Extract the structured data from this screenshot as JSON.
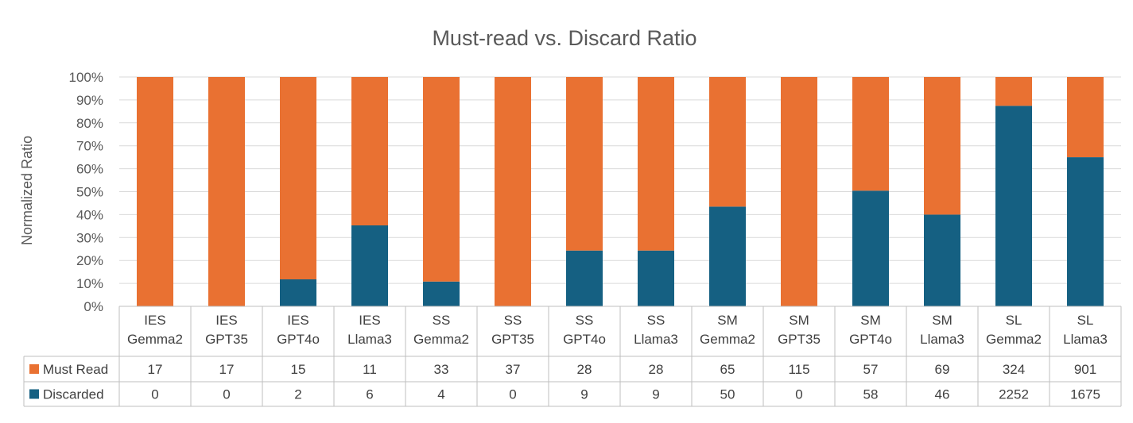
{
  "chart_data": {
    "type": "bar",
    "stacked": true,
    "normalized": true,
    "title": "Must-read vs. Discard Ratio",
    "ylabel": "Normalized Ratio",
    "ylim": [
      0,
      100
    ],
    "yticks": [
      "0%",
      "10%",
      "20%",
      "30%",
      "40%",
      "50%",
      "60%",
      "70%",
      "80%",
      "90%",
      "100%"
    ],
    "grid": true,
    "legend": "data-table",
    "categories": [
      [
        "IES",
        "Gemma2"
      ],
      [
        "IES",
        "GPT35"
      ],
      [
        "IES",
        "GPT4o"
      ],
      [
        "IES",
        "Llama3"
      ],
      [
        "SS",
        "Gemma2"
      ],
      [
        "SS",
        "GPT35"
      ],
      [
        "SS",
        "GPT4o"
      ],
      [
        "SS",
        "Llama3"
      ],
      [
        "SM",
        "Gemma2"
      ],
      [
        "SM",
        "GPT35"
      ],
      [
        "SM",
        "GPT4o"
      ],
      [
        "SM",
        "Llama3"
      ],
      [
        "SL",
        "Gemma2"
      ],
      [
        "SL",
        "Llama3"
      ]
    ],
    "series": [
      {
        "name": "Discarded",
        "color": "#156082",
        "values": [
          0,
          0,
          2,
          6,
          4,
          0,
          9,
          9,
          50,
          0,
          58,
          46,
          2252,
          1675
        ]
      },
      {
        "name": "Must Read",
        "color": "#E97132",
        "values": [
          17,
          17,
          15,
          11,
          33,
          37,
          28,
          28,
          65,
          115,
          57,
          69,
          324,
          901
        ]
      }
    ],
    "table_rows": [
      {
        "label": "Must Read",
        "series_index": 1
      },
      {
        "label": "Discarded",
        "series_index": 0
      }
    ]
  }
}
